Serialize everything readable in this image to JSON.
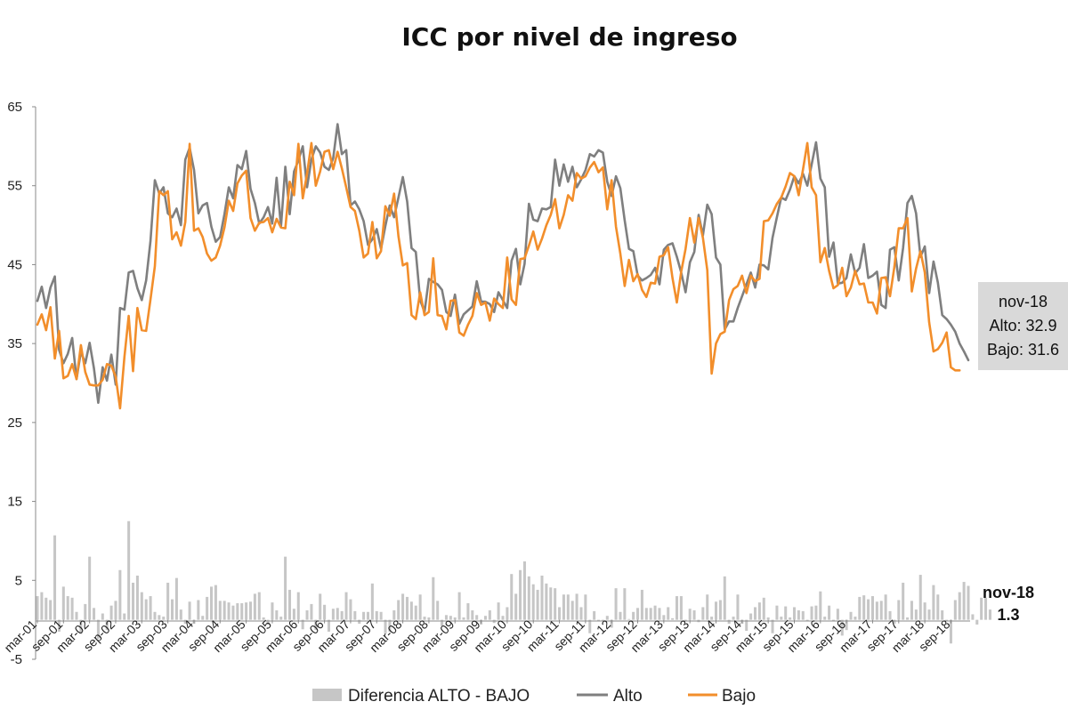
{
  "chart_data": {
    "type": "line",
    "title": "ICC por nivel de ingreso",
    "xlabel": "",
    "ylabel": "",
    "ylim": [
      -5,
      65
    ],
    "yticks": [
      "-5",
      "5",
      "15",
      "25",
      "35",
      "45",
      "55",
      "65"
    ],
    "xticks": [
      "mar-01",
      "sep-01",
      "mar-02",
      "sep-02",
      "mar-03",
      "sep-03",
      "mar-04",
      "sep-04",
      "mar-05",
      "sep-05",
      "mar-06",
      "sep-06",
      "mar-07",
      "sep-07",
      "mar-08",
      "sep-08",
      "mar-09",
      "sep-09",
      "mar-10",
      "sep-10",
      "mar-11",
      "sep-11",
      "mar-12",
      "sep-12",
      "mar-13",
      "sep-13",
      "mar-14",
      "sep-14",
      "mar-15",
      "sep-15",
      "mar-16",
      "sep-16",
      "mar-17",
      "sep-17",
      "mar-18",
      "sep-18"
    ],
    "legend_position": "bottom",
    "grid": false,
    "series": [
      {
        "name": "Diferencia ALTO - BAJO",
        "type": "bar",
        "color": "#c6c6c6",
        "values": [
          3.0,
          3.5,
          2.8,
          2.5,
          10.7,
          -1.5,
          4.2,
          3.0,
          2.8,
          1.0,
          -1.8,
          2.0,
          8.0,
          1.5,
          -2.4,
          0.8,
          -1.3,
          1.8,
          2.4,
          6.3,
          0.8,
          12.5,
          4.7,
          5.6,
          3.5,
          2.6,
          3.0,
          1.0,
          0.6,
          0.4,
          4.7,
          2.6,
          5.3,
          1.3,
          -0.5,
          2.3,
          -0.5,
          2.5,
          0.5,
          2.9,
          4.2,
          4.4,
          2.4,
          2.4,
          2.2,
          1.8,
          2.1,
          2.1,
          2.2,
          2.3,
          3.3,
          3.5,
          0.3,
          -0.6,
          2.2,
          1.2,
          0.4,
          8.0,
          3.8,
          1.4,
          3.5,
          -1.2,
          1.2,
          2.0,
          -1.3,
          3.3,
          1.9,
          -1.5,
          1.4,
          1.5,
          1.1,
          3.5,
          2.6,
          1.1,
          -0.5,
          1.0,
          1.0,
          4.6,
          1.1,
          1.0,
          -1.7,
          -1.5,
          1.2,
          2.5,
          3.3,
          2.9,
          2.3,
          1.8,
          3.2,
          0.4,
          0.3,
          5.4,
          2.4,
          -0.8,
          0.6,
          0.5,
          0.3,
          3.5,
          0.3,
          2.1,
          1.2,
          0.6,
          -0.6,
          0.5,
          1.2,
          -0.4,
          2.2,
          0.5,
          1.6,
          5.8,
          3.3,
          6.3,
          7.4,
          5.5,
          4.5,
          3.8,
          5.6,
          4.6,
          4.1,
          4.0,
          1.6,
          3.2,
          3.2,
          2.4,
          3.3,
          1.6,
          3.2,
          -1.7,
          1.1,
          -0.1,
          -0.2,
          0.5,
          -1.0,
          4.0,
          1.0,
          4.0,
          0.1,
          1.0,
          1.5,
          3.8,
          1.5,
          1.5,
          1.8,
          1.5,
          0.6,
          1.6,
          0.2,
          3.0,
          3.0,
          -0.2,
          1.4,
          1.2,
          -0.3,
          1.6,
          3.2,
          0.4,
          2.3,
          2.5,
          5.5,
          -0.5,
          0.4,
          3.2,
          -0.5,
          -1.4,
          0.8,
          1.6,
          2.2,
          2.8,
          0.3,
          -1.7,
          1.8,
          0.4,
          1.7,
          0.3,
          1.6,
          1.2,
          1.1,
          -0.1,
          1.7,
          1.8,
          3.6,
          0.4,
          1.8,
          -0.2,
          1.4,
          -2.0,
          -1.3,
          1.0,
          0.4,
          2.9,
          3.1,
          2.6,
          3.0,
          2.3,
          2.4,
          3.2,
          1.1,
          -0.5,
          2.5,
          4.7,
          0.3,
          2.4,
          1.3,
          5.7,
          2.2,
          1.3,
          4.4,
          3.2,
          1.2,
          -0.2,
          -3.0,
          2.5,
          3.5,
          4.8,
          4.3,
          0.7,
          -0.6,
          2.8,
          2.8,
          1.3
        ]
      },
      {
        "name": "Alto",
        "type": "line",
        "color": "#7f7f7f",
        "values": [
          40.4,
          42.2,
          39.5,
          42.1,
          43.5,
          34.2,
          32.5,
          33.7,
          35.7,
          30.5,
          34.0,
          32.5,
          35.1,
          31.9,
          27.5,
          32.0,
          30.3,
          33.6,
          29.8,
          39.5,
          39.3,
          44.0,
          44.2,
          42.0,
          40.5,
          43.0,
          48.0,
          55.7,
          54.0,
          54.8,
          51.5,
          51.0,
          52.1,
          50.0,
          58.3,
          59.8,
          57.0,
          51.5,
          52.5,
          52.8,
          49.8,
          47.9,
          48.5,
          51.4,
          54.8,
          53.4,
          57.6,
          57.1,
          59.4,
          54.6,
          52.8,
          50.2,
          51.0,
          52.3,
          50.2,
          56.0,
          49.8,
          57.4,
          51.4,
          56.8,
          58.2,
          60.0,
          54.8,
          58.3,
          60.0,
          59.2,
          57.4,
          57.0,
          58.5,
          62.8,
          59.0,
          59.5,
          52.5,
          53.0,
          52.0,
          50.5,
          47.5,
          48.2,
          49.5,
          47.0,
          49.9,
          52.5,
          51.0,
          53.5,
          56.1,
          53.0,
          47.1,
          46.6,
          40.5,
          39.0,
          43.2,
          42.8,
          42.5,
          41.8,
          39.0,
          38.5,
          41.2,
          37.5,
          38.7,
          39.2,
          39.7,
          42.9,
          40.3,
          40.3,
          40.0,
          39.0,
          41.5,
          40.5,
          39.5,
          45.5,
          47.0,
          42.5,
          45.1,
          52.7,
          50.7,
          50.5,
          52.1,
          52.0,
          52.3,
          58.3,
          55.0,
          57.7,
          55.5,
          57.4,
          54.8,
          55.8,
          57.0,
          59.0,
          58.7,
          59.5,
          59.2,
          55.5,
          53.7,
          56.2,
          54.7,
          50.6,
          47.0,
          46.7,
          43.6,
          43.0,
          43.3,
          43.7,
          44.6,
          42.5,
          46.9,
          47.5,
          47.7,
          46.0,
          44.0,
          41.5,
          45.3,
          46.6,
          51.3,
          48.7,
          52.6,
          51.4,
          45.9,
          45.0,
          36.8,
          37.8,
          37.8,
          39.5,
          41.0,
          42.5,
          44.0,
          42.1,
          45.0,
          44.9,
          44.4,
          48.4,
          51.0,
          53.5,
          53.2,
          54.5,
          56.2,
          55.3,
          56.5,
          55.0,
          57.7,
          60.5,
          55.9,
          54.8,
          46.0,
          47.8,
          42.6,
          42.7,
          43.3,
          46.3,
          43.9,
          44.6,
          47.6,
          43.3,
          43.6,
          44.1,
          39.9,
          39.5,
          46.9,
          47.2,
          43.0,
          47.1,
          52.8,
          53.7,
          51.5,
          46.0,
          47.3,
          41.4,
          45.4,
          42.7,
          38.6,
          38.1,
          37.4,
          36.5,
          35.0,
          34.0,
          32.9
        ]
      },
      {
        "name": "Bajo",
        "type": "line",
        "color": "#f28e2b",
        "values": [
          37.4,
          38.7,
          36.7,
          39.6,
          33.1,
          36.6,
          30.6,
          30.9,
          32.4,
          30.5,
          34.8,
          31.4,
          29.8,
          29.7,
          29.7,
          30.4,
          32.4,
          32.2,
          30.8,
          26.8,
          33.3,
          38.5,
          31.5,
          39.5,
          36.7,
          36.6,
          40.6,
          44.8,
          54.3,
          53.8,
          54.3,
          48.2,
          49.1,
          47.4,
          50.4,
          60.3,
          49.3,
          49.6,
          48.5,
          46.4,
          45.5,
          45.9,
          47.4,
          49.7,
          53.1,
          51.8,
          55.3,
          56.3,
          56.9,
          50.9,
          49.3,
          50.3,
          50.4,
          50.9,
          49.1,
          50.8,
          49.7,
          49.6,
          55.5,
          53.8,
          60.3,
          53.4,
          56.5,
          60.4,
          55.0,
          56.8,
          59.3,
          59.5,
          57.1,
          59.3,
          57.2,
          54.8,
          52.3,
          51.8,
          49.3,
          45.9,
          46.4,
          50.4,
          45.8,
          46.7,
          52.4,
          51.2,
          54.0,
          48.6,
          44.9,
          45.2,
          38.6,
          38.1,
          41.5,
          38.6,
          39.0,
          45.8,
          38.6,
          38.5,
          36.8,
          40.4,
          40.5,
          36.4,
          36.0,
          37.4,
          38.5,
          41.4,
          39.9,
          40.2,
          37.9,
          40.7,
          40.0,
          39.5,
          45.9,
          40.6,
          39.9,
          45.7,
          45.8,
          47.4,
          49.2,
          46.9,
          48.3,
          50.0,
          51.3,
          53.3,
          49.6,
          51.3,
          53.8,
          53.1,
          56.6,
          55.9,
          56.2,
          57.3,
          58.0,
          56.7,
          57.3,
          52.0,
          55.7,
          49.8,
          46.4,
          42.3,
          45.6,
          42.9,
          43.8,
          41.8,
          40.9,
          42.7,
          42.6,
          46.0,
          46.2,
          47.2,
          43.3,
          40.2,
          44.1,
          47.0,
          50.9,
          47.8,
          50.9,
          48.4,
          44.3,
          31.2,
          35.0,
          36.2,
          36.5,
          40.5,
          41.9,
          42.3,
          43.6,
          41.4,
          43.6,
          42.9,
          43.2,
          50.5,
          50.6,
          51.5,
          52.7,
          53.5,
          54.9,
          56.6,
          56.2,
          53.8,
          57.1,
          60.4,
          54.8,
          53.8,
          45.3,
          47.1,
          44.2,
          42.0,
          42.4,
          44.6,
          41.0,
          42.1,
          44.2,
          42.5,
          42.6,
          40.2,
          40.2,
          38.8,
          43.3,
          43.4,
          41.0,
          44.7,
          49.6,
          49.6,
          50.9,
          41.6,
          44.5,
          46.7,
          44.0,
          37.7,
          34.0,
          34.3,
          35.1,
          36.4,
          32.0,
          31.6,
          31.6
        ]
      }
    ],
    "annotations": {
      "latest_label": "nov-18",
      "alto_label": "Alto: 32.9",
      "bajo_label": "Bajo: 31.6",
      "diff_label": "nov-18",
      "diff_value": "1.3"
    }
  }
}
